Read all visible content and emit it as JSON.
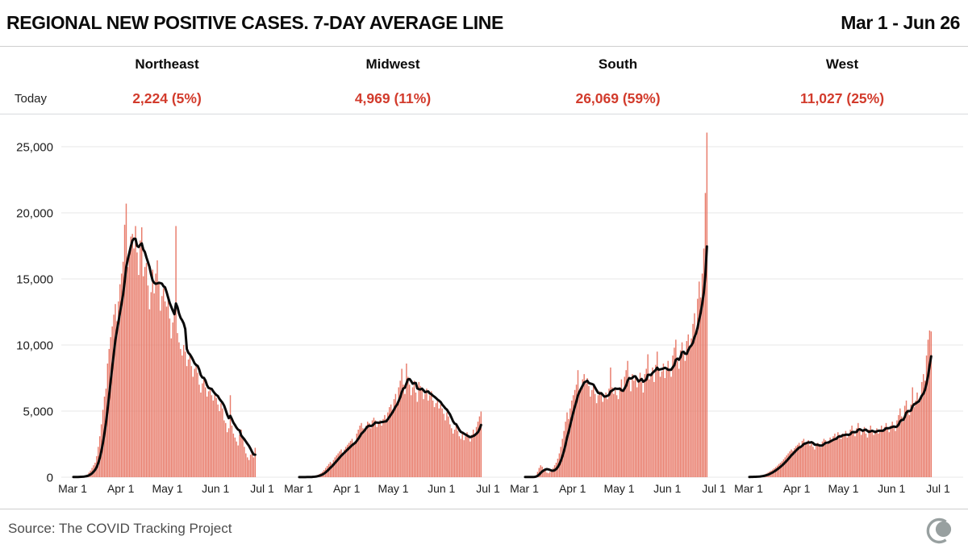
{
  "header": {
    "title": "REGIONAL NEW POSITIVE CASES. 7-DAY AVERAGE LINE",
    "date_range": "Mar 1 - Jun 26"
  },
  "today_label": "Today",
  "footer": {
    "source": "Source: The COVID Tracking Project",
    "logo_icon": "covid-tracking-project-logo"
  },
  "colors": {
    "bar": "#e87b6a",
    "avg_line": "#0a0a0a",
    "accent_red": "#d23b2c",
    "grid": "#e7e7e7",
    "axis_text": "#1c1c1c",
    "source_text": "#4d4d4d",
    "logo_gray": "#98a0a0"
  },
  "chart_data": {
    "type": "bar",
    "title": "Regional new positive cases with 7-day average line",
    "date_start": "Mar 1",
    "date_end": "Jun 26",
    "line_label": "7-day average",
    "grid": true,
    "ylim": [
      0,
      27000
    ],
    "y_ticks": [
      0,
      5000,
      10000,
      15000,
      20000,
      25000
    ],
    "y_tick_labels": [
      "0",
      "5,000",
      "10,000",
      "15,000",
      "20,000",
      "25,000"
    ],
    "x_ticks": [
      {
        "label": "Mar 1",
        "day": 0
      },
      {
        "label": "Apr 1",
        "day": 31
      },
      {
        "label": "May 1",
        "day": 61
      },
      {
        "label": "Jun 1",
        "day": 92
      },
      {
        "label": "Jul 1",
        "day": 122
      }
    ],
    "regions": [
      {
        "name": "Northeast",
        "today": 2224,
        "share_pct": 5,
        "today_display": "2,224 (5%)",
        "daily": [
          10,
          15,
          20,
          30,
          45,
          60,
          80,
          100,
          140,
          200,
          350,
          500,
          700,
          900,
          1100,
          1600,
          2300,
          3100,
          4000,
          5100,
          6100,
          6700,
          8600,
          9700,
          10600,
          11400,
          12300,
          13100,
          11800,
          13300,
          14600,
          15400,
          16300,
          19100,
          20695,
          15900,
          16700,
          18200,
          18400,
          17300,
          19000,
          17000,
          15300,
          17900,
          18900,
          15200,
          15900,
          16200,
          14500,
          12700,
          14000,
          15700,
          13900,
          15400,
          16400,
          14800,
          12600,
          13700,
          14300,
          13300,
          12900,
          13500,
          12000,
          10500,
          11700,
          12400,
          19000,
          10900,
          10200,
          9700,
          9200,
          10000,
          9500,
          8400,
          8900,
          9300,
          8400,
          7600,
          8200,
          8600,
          7900,
          7000,
          6400,
          7100,
          7400,
          6800,
          6100,
          6500,
          6700,
          6200,
          5800,
          6300,
          6000,
          5500,
          5000,
          5600,
          5200,
          4300,
          4100,
          3400,
          3700,
          6200,
          3900,
          3300,
          3000,
          2700,
          2400,
          3200,
          3600,
          2900,
          2300,
          1800,
          1500,
          1300,
          1700,
          1900,
          1500,
          2224
        ]
      },
      {
        "name": "Midwest",
        "today": 4969,
        "share_pct": 11,
        "today_display": "4,969 (11%)",
        "daily": [
          5,
          6,
          8,
          10,
          14,
          18,
          25,
          30,
          40,
          60,
          90,
          130,
          180,
          250,
          320,
          420,
          550,
          700,
          850,
          1000,
          1150,
          1050,
          1300,
          1500,
          1650,
          1800,
          1950,
          2100,
          1850,
          2100,
          2300,
          2450,
          2600,
          2750,
          2900,
          2500,
          2700,
          3300,
          3600,
          3900,
          4100,
          3700,
          3400,
          3900,
          4200,
          4100,
          3700,
          4300,
          4500,
          4300,
          3800,
          4100,
          4300,
          3900,
          4400,
          4700,
          4400,
          4900,
          5300,
          5500,
          5100,
          5900,
          6300,
          5500,
          6800,
          7300,
          8200,
          7000,
          6300,
          8600,
          7600,
          7000,
          6200,
          6800,
          7300,
          6400,
          5700,
          7200,
          6900,
          6600,
          5900,
          6300,
          6700,
          5800,
          6200,
          6500,
          5800,
          5300,
          5600,
          5900,
          5200,
          5500,
          5200,
          4800,
          4300,
          4900,
          4600,
          4000,
          3700,
          3300,
          3600,
          3900,
          3500,
          3100,
          2900,
          3300,
          2800,
          3100,
          3400,
          3000,
          2700,
          3200,
          3600,
          3300,
          3800,
          4200,
          4600,
          4969
        ]
      },
      {
        "name": "South",
        "today": 26069,
        "share_pct": 59,
        "today_display": "26,069 (59%)",
        "daily": [
          10,
          12,
          15,
          20,
          25,
          35,
          50,
          150,
          400,
          700,
          900,
          800,
          600,
          500,
          350,
          300,
          400,
          550,
          700,
          900,
          1100,
          1400,
          1800,
          2300,
          2900,
          3500,
          4200,
          4900,
          4400,
          5200,
          5800,
          6200,
          6600,
          7000,
          8100,
          6400,
          6800,
          7400,
          7800,
          7100,
          7500,
          6900,
          6100,
          6600,
          7000,
          6300,
          5600,
          6200,
          6500,
          6300,
          5700,
          6100,
          6400,
          5900,
          6700,
          8300,
          6800,
          6300,
          6600,
          6200,
          5900,
          6800,
          7400,
          6500,
          7600,
          8100,
          8800,
          7300,
          6500,
          7800,
          7300,
          7600,
          6800,
          7400,
          7900,
          7200,
          6400,
          7800,
          8200,
          9300,
          7400,
          7800,
          8300,
          7200,
          8500,
          9500,
          8200,
          7600,
          8000,
          8600,
          7500,
          8200,
          8800,
          8200,
          7600,
          9200,
          9800,
          10400,
          8800,
          8200,
          9600,
          10200,
          9400,
          8800,
          10300,
          10800,
          9800,
          10500,
          11600,
          12400,
          10700,
          13500,
          14800,
          13600,
          15400,
          17300,
          21500,
          26069
        ]
      },
      {
        "name": "West",
        "today": 11027,
        "share_pct": 25,
        "today_display": "11,027 (25%)",
        "daily": [
          20,
          25,
          30,
          40,
          50,
          65,
          85,
          100,
          130,
          170,
          220,
          280,
          350,
          430,
          500,
          580,
          670,
          770,
          880,
          1000,
          1100,
          1200,
          1350,
          1500,
          1650,
          1800,
          1950,
          2100,
          2000,
          2200,
          2350,
          2450,
          2600,
          2300,
          2750,
          2900,
          2500,
          2650,
          2800,
          2400,
          2550,
          2300,
          2100,
          2400,
          2600,
          2500,
          2250,
          2700,
          2900,
          2800,
          2500,
          2750,
          3000,
          2700,
          3100,
          3300,
          3000,
          3400,
          3200,
          2900,
          3300,
          3200,
          3500,
          3000,
          3300,
          3600,
          3900,
          3400,
          3100,
          3700,
          4100,
          3600,
          3200,
          3500,
          3800,
          3300,
          3000,
          3600,
          3900,
          3500,
          3200,
          3400,
          3700,
          3300,
          3600,
          3900,
          3500,
          3800,
          4100,
          3700,
          3400,
          3900,
          4200,
          3800,
          3500,
          4300,
          4700,
          5200,
          4600,
          4200,
          5400,
          5800,
          5100,
          4700,
          5500,
          6800,
          5300,
          5800,
          6400,
          5600,
          6100,
          7200,
          7800,
          7300,
          9200,
          10400,
          11100,
          11027
        ]
      }
    ]
  }
}
